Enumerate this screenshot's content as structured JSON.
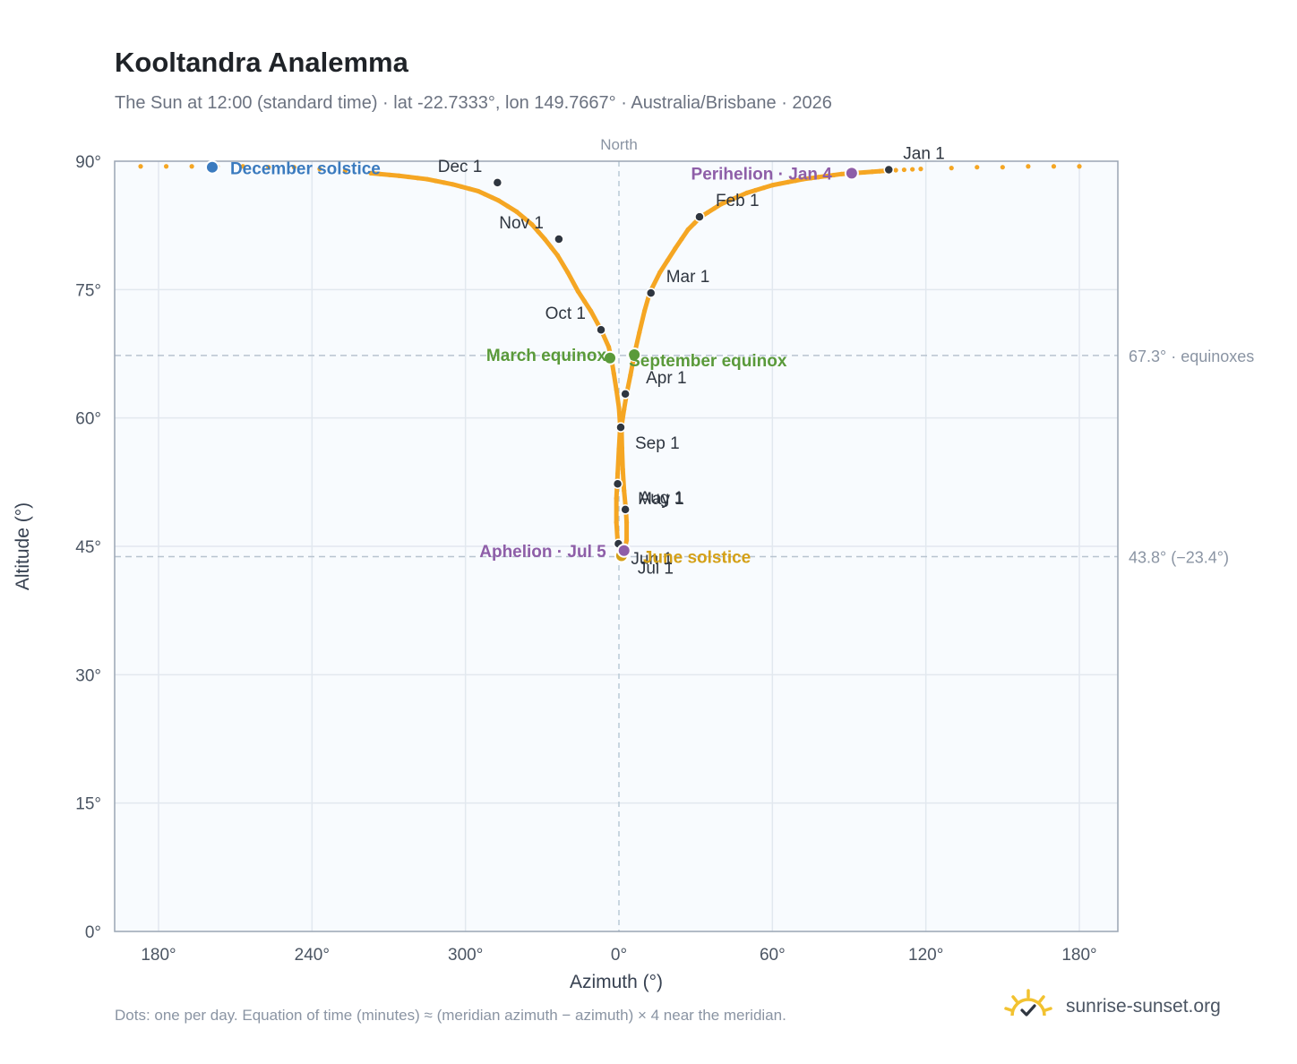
{
  "header": {
    "title": "Kooltandra Analemma",
    "subtitle": "The Sun at 12:00 (standard time) · lat -22.7333°, lon 149.7667° · Australia/Brisbane · 2026"
  },
  "footer": {
    "note": "Dots: one per day. Equation of time (minutes) ≈ (meridian azimuth − azimuth) × 4 near the meridian.",
    "brand": "sunrise-sunset.org"
  },
  "colors": {
    "curve": "#f5a623",
    "month_marker": "#2f3640",
    "solstice_dec": "#3b7bbf",
    "solstice_jun": "#d4a017",
    "equinox": "#5a9a3a",
    "apsis": "#8e5ea8",
    "plot_bg": "#f8fbfe",
    "grid": "#e2e8ef",
    "axis": "#9aa5b4",
    "ref_line": "#b8c4d0"
  },
  "chart_data": {
    "type": "scatter",
    "xlabel": "Azimuth (°)",
    "ylabel": "Altitude (°)",
    "xlim": [
      165,
      195
    ],
    "ylim": [
      0,
      90
    ],
    "x_axis_note": "azimuth axis wraps: 180° through 360°/0° (North) to 180°",
    "x_ticks": [
      {
        "value": 180,
        "label": "180°"
      },
      {
        "value": 240,
        "label": "240°"
      },
      {
        "value": 300,
        "label": "300°"
      },
      {
        "value": 360,
        "label": "0°"
      },
      {
        "value": 420,
        "label": "60°"
      },
      {
        "value": 480,
        "label": "120°"
      },
      {
        "value": 540,
        "label": "180°"
      }
    ],
    "y_ticks": [
      {
        "value": 0,
        "label": "0°"
      },
      {
        "value": 15,
        "label": "15°"
      },
      {
        "value": 30,
        "label": "30°"
      },
      {
        "value": 45,
        "label": "45°"
      },
      {
        "value": 60,
        "label": "60°"
      },
      {
        "value": 75,
        "label": "75°"
      },
      {
        "value": 90,
        "label": "90°"
      }
    ],
    "meridian": {
      "value": 360,
      "label": "North"
    },
    "reference_lines": [
      {
        "value": 67.3,
        "label": "67.3° · equinoxes"
      },
      {
        "value": 43.8,
        "label": "43.8° (−23.4°)"
      }
    ],
    "series": [
      {
        "points": [
          [
            173,
            89.4
          ],
          [
            183,
            89.4
          ],
          [
            193,
            89.4
          ],
          [
            203,
            89.4
          ],
          [
            213,
            89.4
          ],
          [
            223,
            89.3
          ],
          [
            233,
            89.3
          ],
          [
            243,
            89.1
          ],
          [
            253,
            88.9
          ],
          [
            263,
            88.6
          ],
          [
            274,
            88.3
          ],
          [
            285,
            87.9
          ],
          [
            295,
            87.3
          ],
          [
            305,
            86.5
          ],
          [
            313,
            85.4
          ],
          [
            320,
            84.1
          ],
          [
            326,
            82.6
          ],
          [
            331,
            80.9
          ],
          [
            336,
            79.0
          ],
          [
            340,
            77.0
          ],
          [
            344,
            74.8
          ],
          [
            349,
            72.5
          ],
          [
            353,
            70.3
          ],
          [
            356,
            68.3
          ],
          [
            357,
            67.0
          ],
          [
            358,
            65.2
          ],
          [
            359,
            63.3
          ],
          [
            360,
            61.2
          ],
          [
            360.5,
            59.0
          ],
          [
            360,
            56.4
          ],
          [
            359.5,
            53.5
          ],
          [
            359,
            50.6
          ],
          [
            359,
            47.8
          ],
          [
            359.5,
            45.5
          ],
          [
            360.5,
            44.2
          ],
          [
            362,
            44.3
          ],
          [
            363,
            45.7
          ],
          [
            363,
            47.8
          ],
          [
            362.7,
            49.3
          ],
          [
            362,
            51.5
          ],
          [
            361.5,
            54.0
          ],
          [
            361.2,
            56.5
          ],
          [
            361,
            59.0
          ],
          [
            362,
            61.0
          ],
          [
            363,
            62.8
          ],
          [
            364.5,
            65.0
          ],
          [
            366,
            67.4
          ],
          [
            368,
            70.0
          ],
          [
            370,
            72.5
          ],
          [
            372,
            74.6
          ],
          [
            376,
            77.0
          ],
          [
            382,
            79.8
          ],
          [
            387,
            82.0
          ],
          [
            392,
            83.5
          ],
          [
            400,
            85.0
          ],
          [
            410,
            86.3
          ],
          [
            420,
            87.2
          ],
          [
            432,
            87.9
          ],
          [
            447,
            88.5
          ],
          [
            465,
            88.9
          ],
          [
            478,
            89.1
          ],
          [
            490,
            89.2
          ],
          [
            500,
            89.3
          ],
          [
            510,
            89.3
          ],
          [
            520,
            89.4
          ],
          [
            530,
            89.4
          ],
          [
            540,
            89.4
          ],
          [
            545,
            89.4
          ]
        ]
      }
    ],
    "month_markers": [
      {
        "label": "Jan 1",
        "az": 465.5,
        "alt": 89.0
      },
      {
        "label": "Feb 1",
        "az": 391.5,
        "alt": 83.5
      },
      {
        "label": "Mar 1",
        "az": 372.5,
        "alt": 74.6
      },
      {
        "label": "Apr 1",
        "az": 362.5,
        "alt": 62.8
      },
      {
        "label": "May 1",
        "az": 362.5,
        "alt": 49.3
      },
      {
        "label": "Jun 1",
        "az": 359.8,
        "alt": 45.3
      },
      {
        "label": "Jul 1",
        "az": 361.0,
        "alt": 43.9
      },
      {
        "label": "Aug 1",
        "az": 359.5,
        "alt": 52.3
      },
      {
        "label": "Sep 1",
        "az": 360.7,
        "alt": 58.9
      },
      {
        "label": "Oct 1",
        "az": 353.0,
        "alt": 70.3
      },
      {
        "label": "Nov 1",
        "az": 336.5,
        "alt": 80.9
      },
      {
        "label": "Dec 1",
        "az": 312.5,
        "alt": 87.5
      }
    ],
    "events": [
      {
        "label": "December solstice",
        "az": 201,
        "alt": 89.3,
        "kind": "solstice_dec"
      },
      {
        "label": "June solstice",
        "az": 361.0,
        "alt": 43.9,
        "kind": "solstice_jun"
      },
      {
        "label": "March equinox",
        "az": 356.5,
        "alt": 67.0,
        "kind": "equinox"
      },
      {
        "label": "September equinox",
        "az": 366.0,
        "alt": 67.4,
        "kind": "equinox"
      },
      {
        "label": "Perihelion · Jan 4",
        "az": 451,
        "alt": 88.6,
        "kind": "apsis"
      },
      {
        "label": "Aphelion · Jul 5",
        "az": 362,
        "alt": 44.5,
        "kind": "apsis"
      }
    ]
  }
}
